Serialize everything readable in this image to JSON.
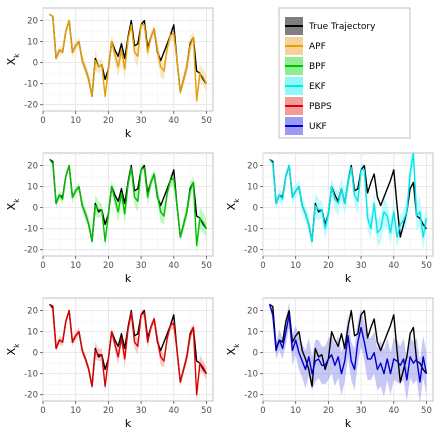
{
  "legend": {
    "entries": [
      {
        "label": "True Trajectory",
        "color": "#000000",
        "fill": "#7f7f7f"
      },
      {
        "label": "APF",
        "color": "#e69f00",
        "fill": "#f5d29a"
      },
      {
        "label": "BPF",
        "color": "#00c000",
        "fill": "#90ee90"
      },
      {
        "label": "EKF",
        "color": "#00e5ee",
        "fill": "#90f7f7"
      },
      {
        "label": "PBPS",
        "color": "#e00000",
        "fill": "#f39a9a"
      },
      {
        "label": "UKF",
        "color": "#0000cc",
        "fill": "#9a9af0"
      }
    ]
  },
  "chart_data": [
    {
      "type": "line",
      "panel": "APF",
      "xlabel": "k",
      "ylabel": "X",
      "ylabel_sub": "k",
      "xlim": [
        0,
        52
      ],
      "ylim": [
        -23,
        26
      ],
      "xticks": [
        0,
        10,
        20,
        30,
        40,
        50
      ],
      "yticks": [
        -20,
        -10,
        0,
        10,
        20
      ],
      "true_color": "#000000",
      "est_color": "#e69f00",
      "band_color": "#f5d29a",
      "k": [
        2,
        3,
        4,
        5,
        6,
        7,
        8,
        9,
        10,
        11,
        12,
        13,
        14,
        15,
        16,
        17,
        18,
        19,
        20,
        21,
        22,
        23,
        24,
        25,
        26,
        27,
        28,
        29,
        30,
        31,
        32,
        33,
        34,
        35,
        36,
        37,
        38,
        39,
        40,
        41,
        42,
        43,
        44,
        45,
        46,
        47,
        48,
        49,
        50
      ],
      "true": [
        23,
        22,
        2,
        6,
        5,
        15,
        20,
        5,
        8,
        10,
        1,
        -3,
        -8,
        -16,
        2,
        -2,
        -1,
        -8,
        -3,
        10,
        6,
        3,
        9,
        2,
        12,
        20,
        8,
        9,
        18,
        20,
        7,
        12,
        16,
        5,
        1,
        5,
        9,
        13,
        18,
        1,
        -14,
        -8,
        -2,
        9,
        12,
        -4,
        -5,
        -8,
        -10
      ],
      "est": [
        23,
        22,
        2,
        6,
        5,
        15,
        20,
        5,
        8,
        10,
        1,
        -3,
        -8,
        -16,
        1,
        -2,
        -1,
        -16,
        -3,
        10,
        4,
        -2,
        6,
        -3,
        11,
        18,
        5,
        3,
        18,
        18,
        5,
        12,
        16,
        6,
        -2,
        -4,
        7,
        13,
        14,
        1,
        -14,
        -8,
        -2,
        8,
        12,
        -18,
        -5,
        -7,
        -10
      ],
      "band": [
        0,
        0,
        1,
        2,
        2,
        1,
        1,
        3,
        2,
        2,
        3,
        3,
        3,
        2,
        5,
        3,
        3,
        3,
        4,
        3,
        4,
        5,
        4,
        5,
        4,
        2,
        4,
        5,
        2,
        2,
        4,
        3,
        2,
        4,
        5,
        4,
        4,
        3,
        4,
        3,
        2,
        3,
        4,
        4,
        3,
        4,
        4,
        4,
        4
      ]
    },
    {
      "type": "line",
      "panel": "BPF",
      "xlabel": "k",
      "ylabel": "X",
      "ylabel_sub": "k",
      "xlim": [
        0,
        52
      ],
      "ylim": [
        -23,
        26
      ],
      "xticks": [
        0,
        10,
        20,
        30,
        40,
        50
      ],
      "yticks": [
        -20,
        -10,
        0,
        10,
        20
      ],
      "true_color": "#000000",
      "est_color": "#00c000",
      "band_color": "#90ee90",
      "k": [
        2,
        3,
        4,
        5,
        6,
        7,
        8,
        9,
        10,
        11,
        12,
        13,
        14,
        15,
        16,
        17,
        18,
        19,
        20,
        21,
        22,
        23,
        24,
        25,
        26,
        27,
        28,
        29,
        30,
        31,
        32,
        33,
        34,
        35,
        36,
        37,
        38,
        39,
        40,
        41,
        42,
        43,
        44,
        45,
        46,
        47,
        48,
        49,
        50
      ],
      "true": [
        23,
        22,
        2,
        6,
        5,
        15,
        20,
        5,
        8,
        10,
        1,
        -3,
        -8,
        -16,
        2,
        -2,
        -1,
        -8,
        -3,
        10,
        6,
        3,
        9,
        2,
        12,
        20,
        8,
        9,
        18,
        20,
        7,
        12,
        16,
        5,
        1,
        5,
        9,
        13,
        18,
        1,
        -14,
        -8,
        -2,
        9,
        12,
        -4,
        -5,
        -8,
        -10
      ],
      "est": [
        23,
        21,
        2,
        6,
        4,
        15,
        20,
        5,
        8,
        10,
        1,
        -3,
        -8,
        -16,
        1,
        -1,
        -1,
        -16,
        -3,
        10,
        4,
        -2,
        7,
        -3,
        11,
        19,
        5,
        3,
        18,
        19,
        5,
        12,
        16,
        6,
        -2,
        -4,
        7,
        13,
        14,
        1,
        -14,
        -8,
        -2,
        8,
        12,
        -18,
        -5,
        -7,
        -10
      ],
      "band": [
        0,
        1,
        2,
        2,
        2,
        1,
        1,
        3,
        2,
        2,
        3,
        3,
        3,
        2,
        5,
        4,
        3,
        3,
        4,
        3,
        4,
        5,
        4,
        5,
        4,
        2,
        4,
        5,
        2,
        2,
        4,
        3,
        2,
        4,
        5,
        4,
        4,
        3,
        4,
        3,
        2,
        3,
        4,
        4,
        3,
        4,
        5,
        5,
        4
      ]
    },
    {
      "type": "line",
      "panel": "EKF",
      "xlabel": "k",
      "ylabel": "X",
      "ylabel_sub": "k",
      "xlim": [
        0,
        52
      ],
      "ylim": [
        -23,
        26
      ],
      "xticks": [
        0,
        10,
        20,
        30,
        40,
        50
      ],
      "yticks": [
        -20,
        -10,
        0,
        10,
        20
      ],
      "true_color": "#000000",
      "est_color": "#00e5ee",
      "band_color": "#90f7f7",
      "k": [
        2,
        3,
        4,
        5,
        6,
        7,
        8,
        9,
        10,
        11,
        12,
        13,
        14,
        15,
        16,
        17,
        18,
        19,
        20,
        21,
        22,
        23,
        24,
        25,
        26,
        27,
        28,
        29,
        30,
        31,
        32,
        33,
        34,
        35,
        36,
        37,
        38,
        39,
        40,
        41,
        42,
        43,
        44,
        45,
        46,
        47,
        48,
        49,
        50
      ],
      "true": [
        23,
        22,
        2,
        6,
        5,
        15,
        20,
        5,
        8,
        10,
        1,
        -3,
        -8,
        -16,
        2,
        -2,
        -1,
        -8,
        -3,
        10,
        6,
        3,
        9,
        2,
        12,
        20,
        8,
        9,
        18,
        20,
        7,
        12,
        16,
        5,
        1,
        5,
        9,
        13,
        18,
        1,
        -14,
        -8,
        -2,
        9,
        12,
        -4,
        -5,
        -8,
        -10
      ],
      "est": [
        23,
        21,
        2,
        6,
        4,
        15,
        20,
        5,
        8,
        10,
        1,
        -3,
        -8,
        -16,
        1,
        -1,
        -1,
        -10,
        -3,
        10,
        4,
        2,
        9,
        2,
        12,
        19,
        6,
        3,
        18,
        18,
        -5,
        -10,
        2,
        -12,
        -10,
        -2,
        -4,
        -12,
        -2,
        -14,
        -8,
        -6,
        -2,
        16,
        26,
        -4,
        -2,
        -14,
        -5
      ],
      "band": [
        0,
        1,
        3,
        3,
        3,
        2,
        2,
        4,
        3,
        3,
        4,
        4,
        4,
        3,
        6,
        5,
        4,
        5,
        5,
        4,
        5,
        6,
        5,
        6,
        5,
        3,
        5,
        6,
        3,
        3,
        6,
        5,
        5,
        6,
        7,
        7,
        6,
        6,
        6,
        5,
        5,
        5,
        6,
        6,
        5,
        7,
        7,
        6,
        6
      ]
    },
    {
      "type": "line",
      "panel": "PBPS",
      "xlabel": "k",
      "ylabel": "X",
      "ylabel_sub": "k",
      "xlim": [
        0,
        52
      ],
      "ylim": [
        -23,
        26
      ],
      "xticks": [
        0,
        10,
        20,
        30,
        40,
        50
      ],
      "yticks": [
        -20,
        -10,
        0,
        10,
        20
      ],
      "true_color": "#000000",
      "est_color": "#e00000",
      "band_color": "#f39a9a",
      "k": [
        2,
        3,
        4,
        5,
        6,
        7,
        8,
        9,
        10,
        11,
        12,
        13,
        14,
        15,
        16,
        17,
        18,
        19,
        20,
        21,
        22,
        23,
        24,
        25,
        26,
        27,
        28,
        29,
        30,
        31,
        32,
        33,
        34,
        35,
        36,
        37,
        38,
        39,
        40,
        41,
        42,
        43,
        44,
        45,
        46,
        47,
        48,
        49,
        50
      ],
      "true": [
        23,
        22,
        2,
        6,
        5,
        15,
        20,
        5,
        8,
        10,
        1,
        -3,
        -8,
        -16,
        2,
        -2,
        -1,
        -8,
        -3,
        10,
        6,
        3,
        9,
        2,
        12,
        20,
        8,
        9,
        18,
        20,
        7,
        12,
        16,
        5,
        1,
        5,
        9,
        13,
        18,
        1,
        -14,
        -8,
        -2,
        9,
        12,
        -4,
        -5,
        -8,
        -10
      ],
      "est": [
        23,
        21,
        2,
        6,
        5,
        15,
        20,
        5,
        8,
        10,
        1,
        -3,
        -8,
        -16,
        1,
        -1,
        -1,
        -16,
        -3,
        10,
        4,
        -2,
        7,
        -3,
        11,
        19,
        5,
        3,
        18,
        19,
        5,
        12,
        16,
        6,
        -2,
        -4,
        7,
        13,
        14,
        1,
        -14,
        -8,
        -2,
        8,
        12,
        -20,
        -5,
        -7,
        -10
      ],
      "band": [
        0,
        0,
        1,
        2,
        2,
        1,
        1,
        2,
        2,
        2,
        2,
        2,
        2,
        2,
        4,
        3,
        3,
        3,
        3,
        2,
        3,
        4,
        3,
        4,
        3,
        2,
        3,
        4,
        2,
        2,
        3,
        2,
        2,
        3,
        4,
        3,
        3,
        2,
        3,
        2,
        2,
        2,
        3,
        3,
        2,
        3,
        4,
        3,
        3
      ]
    },
    {
      "type": "line",
      "panel": "UKF",
      "xlabel": "k",
      "ylabel": "X",
      "ylabel_sub": "k",
      "xlim": [
        0,
        52
      ],
      "ylim": [
        -23,
        26
      ],
      "xticks": [
        0,
        10,
        20,
        30,
        40,
        50
      ],
      "yticks": [
        -20,
        -10,
        0,
        10,
        20
      ],
      "true_color": "#000000",
      "est_color": "#0000cc",
      "band_color": "#9a9af0",
      "k": [
        2,
        3,
        4,
        5,
        6,
        7,
        8,
        9,
        10,
        11,
        12,
        13,
        14,
        15,
        16,
        17,
        18,
        19,
        20,
        21,
        22,
        23,
        24,
        25,
        26,
        27,
        28,
        29,
        30,
        31,
        32,
        33,
        34,
        35,
        36,
        37,
        38,
        39,
        40,
        41,
        42,
        43,
        44,
        45,
        46,
        47,
        48,
        49,
        50
      ],
      "true": [
        23,
        22,
        2,
        6,
        5,
        15,
        20,
        5,
        8,
        10,
        1,
        -3,
        -8,
        -16,
        2,
        -2,
        -1,
        -8,
        -3,
        10,
        6,
        3,
        9,
        2,
        12,
        20,
        8,
        9,
        18,
        20,
        7,
        12,
        16,
        5,
        1,
        5,
        9,
        13,
        18,
        1,
        -14,
        -8,
        -2,
        9,
        12,
        -4,
        -5,
        -8,
        -10
      ],
      "est": [
        23,
        18,
        1,
        6,
        2,
        10,
        18,
        1,
        6,
        0,
        -4,
        -8,
        -2,
        -10,
        -4,
        -3,
        -6,
        -6,
        -3,
        -1,
        -6,
        -2,
        -10,
        -4,
        8,
        -4,
        -8,
        5,
        12,
        5,
        -3,
        -3,
        0,
        -8,
        -5,
        -10,
        -3,
        -10,
        -3,
        -4,
        -6,
        -3,
        -13,
        -2,
        -5,
        -3,
        -14,
        -2,
        -10
      ],
      "band": [
        1,
        3,
        4,
        5,
        5,
        6,
        6,
        7,
        7,
        8,
        8,
        9,
        9,
        8,
        10,
        9,
        9,
        9,
        10,
        9,
        10,
        10,
        10,
        10,
        10,
        9,
        10,
        10,
        9,
        9,
        10,
        10,
        10,
        10,
        11,
        11,
        10,
        10,
        10,
        10,
        9,
        10,
        10,
        10,
        10,
        10,
        10,
        10,
        10
      ]
    }
  ]
}
